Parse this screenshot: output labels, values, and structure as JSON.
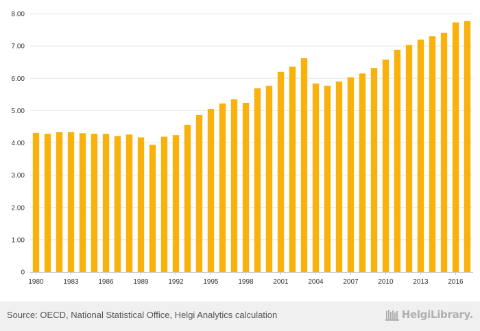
{
  "chart_data": {
    "type": "bar",
    "title": "",
    "xlabel": "",
    "ylabel": "",
    "categories": [
      "1980",
      "1981",
      "1982",
      "1983",
      "1984",
      "1985",
      "1986",
      "1987",
      "1988",
      "1989",
      "1990",
      "1991",
      "1992",
      "1993",
      "1994",
      "1995",
      "1996",
      "1997",
      "1998",
      "1999",
      "2000",
      "2001",
      "2002",
      "2003",
      "2004",
      "2005",
      "2006",
      "2007",
      "2008",
      "2009",
      "2010",
      "2011",
      "2012",
      "2013",
      "2014",
      "2015",
      "2016",
      "2017"
    ],
    "values": [
      4.31,
      4.28,
      4.33,
      4.33,
      4.3,
      4.28,
      4.28,
      4.21,
      4.26,
      4.17,
      3.94,
      4.19,
      4.24,
      4.56,
      4.86,
      5.05,
      5.22,
      5.35,
      5.24,
      5.69,
      5.77,
      6.2,
      6.36,
      6.62,
      5.84,
      5.77,
      5.9,
      6.03,
      6.15,
      6.32,
      6.58,
      6.88,
      7.03,
      7.2,
      7.3,
      7.41,
      7.73,
      7.77
    ],
    "x_tick_labels": [
      "1980",
      "1983",
      "1986",
      "1989",
      "1992",
      "1995",
      "1998",
      "2001",
      "2004",
      "2007",
      "2010",
      "2013",
      "2016"
    ],
    "y_tick_labels": [
      "0",
      "1.00",
      "2.00",
      "3.00",
      "4.00",
      "5.00",
      "6.00",
      "7.00",
      "8.00"
    ],
    "ylim": [
      0,
      8
    ],
    "grid": true,
    "legend": "none",
    "bar_color": "#F9B10B"
  },
  "footer": {
    "source": "Source: OECD, National Statistical Office, Helgi Analytics calculation",
    "brand": "HelgiLibrary."
  },
  "icons": {
    "brand": "bookshelf-icon"
  }
}
